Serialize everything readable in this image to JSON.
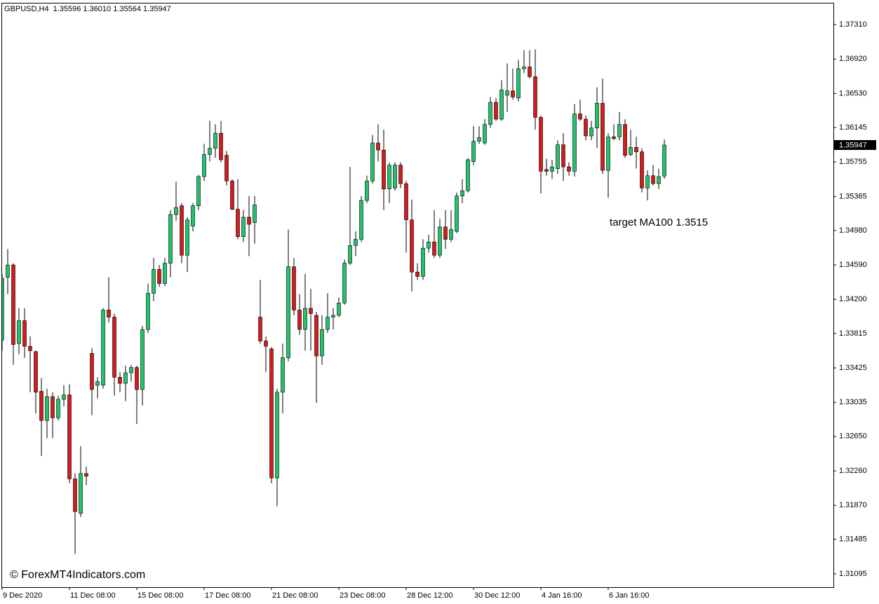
{
  "chart_data": {
    "type": "candlestick",
    "title": "GBPUSD,H4",
    "subtitle": "1.35596 1.36010 1.35564 1.35947",
    "annotation": "target MA100 1.3515",
    "watermark": "© ForexMT4Indicators.com",
    "last_price": 1.35947,
    "up_color": "#22c36c",
    "down_color": "#d41c1c",
    "wick_color": "#000000",
    "annotation_color": "#1a9a1a",
    "ylim": [
      1.30944,
      1.37556
    ],
    "yticks": [
      {
        "value": 1.3731,
        "label": "1.37310"
      },
      {
        "value": 1.3692,
        "label": "1.36920"
      },
      {
        "value": 1.3653,
        "label": "1.36530"
      },
      1.36145,
      1.35755,
      1.35365,
      {
        "value": 1.3498,
        "label": "1.34980"
      },
      {
        "value": 1.3459,
        "label": "1.34590"
      },
      {
        "value": 1.342,
        "label": "1.34200"
      },
      1.33815,
      1.33425,
      1.33035,
      {
        "value": 1.3265,
        "label": "1.32650"
      },
      {
        "value": 1.3226,
        "label": "1.32260"
      },
      {
        "value": 1.3187,
        "label": "1.31870"
      },
      1.31485,
      1.31095
    ],
    "categories": [
      "9 Dec 2020",
      null,
      null,
      null,
      null,
      null,
      null,
      null,
      null,
      null,
      null,
      null,
      "11 Dec 08:00",
      null,
      null,
      null,
      null,
      null,
      null,
      null,
      null,
      null,
      null,
      null,
      "15 Dec 08:00",
      null,
      null,
      null,
      null,
      null,
      null,
      null,
      null,
      null,
      null,
      null,
      "17 Dec 08:00",
      null,
      null,
      null,
      null,
      null,
      null,
      null,
      null,
      null,
      null,
      null,
      "21 Dec 08:00",
      null,
      null,
      null,
      null,
      null,
      null,
      null,
      null,
      null,
      null,
      null,
      "23 Dec 08:00",
      null,
      null,
      null,
      null,
      null,
      null,
      null,
      null,
      null,
      null,
      null,
      "28 Dec 12:00",
      null,
      null,
      null,
      null,
      null,
      null,
      null,
      null,
      null,
      null,
      null,
      "30 Dec 12:00",
      null,
      null,
      null,
      null,
      null,
      null,
      null,
      null,
      null,
      null,
      null,
      "4 Jan 16:00",
      null,
      null,
      null,
      null,
      null,
      null,
      null,
      null,
      null,
      null,
      null,
      "6 Jan 16:00",
      null,
      null,
      null,
      null,
      null,
      null,
      null,
      null,
      null,
      null
    ],
    "open": [
      1.3374,
      1.3445,
      1.3459,
      1.337,
      1.3396,
      1.3367,
      1.3361,
      1.3316,
      1.3283,
      1.331,
      1.3286,
      1.3307,
      1.3312,
      1.3217,
      1.3178,
      1.3223,
      1.3359,
      1.3323,
      1.3323,
      1.3408,
      1.34,
      1.3332,
      1.3325,
      1.3337,
      1.3343,
      1.3318,
      1.3386,
      1.3427,
      1.3454,
      1.3438,
      1.3461,
      1.3516,
      1.3526,
      1.347,
      1.3503,
      1.3526,
      1.3559,
      1.3584,
      1.3591,
      1.3608,
      1.3583,
      1.3554,
      1.3522,
      1.3491,
      1.3513,
      1.3507,
      1.34,
      1.3373,
      1.3364,
      1.3218,
      1.3315,
      1.3354,
      1.3457,
      1.3408,
      1.3386,
      1.341,
      1.3402,
      1.3356,
      1.3386,
      1.34,
      1.3402,
      1.3416,
      1.3461,
      1.3481,
      1.3488,
      1.3532,
      1.3554,
      1.3597,
      1.3589,
      1.3545,
      1.3546,
      1.3572,
      1.3551,
      1.351,
      1.3451,
      1.3446,
      1.3478,
      1.3485,
      1.347,
      1.3502,
      1.3488,
      1.3497,
      1.3537,
      1.3543,
      1.3576,
      1.3599,
      1.3597,
      1.3618,
      1.3643,
      1.3624,
      1.3651,
      1.3656,
      1.3648,
      1.3681,
      1.3683,
      1.3672,
      1.3626,
      1.3567,
      1.3565,
      1.3568,
      1.3595,
      1.357,
      1.3565,
      1.363,
      1.3624,
      1.3605,
      1.3614,
      1.3642,
      1.3566,
      1.3604,
      1.3604,
      1.3618,
      1.3584,
      1.3592,
      1.3587,
      1.3546,
      1.356,
      1.3551,
      1.35596
    ],
    "high": [
      1.3449,
      1.3477,
      1.3461,
      1.341,
      1.341,
      1.3378,
      1.3362,
      1.3331,
      1.3319,
      1.3315,
      1.3311,
      1.3323,
      1.3324,
      1.3223,
      1.3254,
      1.3231,
      1.3365,
      1.3332,
      1.341,
      1.3445,
      1.3404,
      1.3338,
      1.3345,
      1.3346,
      1.3345,
      1.339,
      1.3438,
      1.3467,
      1.3459,
      1.3467,
      1.3521,
      1.3553,
      1.3529,
      1.3513,
      1.3529,
      1.3561,
      1.3596,
      1.3622,
      1.3618,
      1.3622,
      1.3588,
      1.3556,
      1.3556,
      1.3521,
      1.3537,
      1.3537,
      1.3442,
      1.3378,
      1.3366,
      1.3319,
      1.337,
      1.3499,
      1.3467,
      1.3426,
      1.3449,
      1.3432,
      1.3406,
      1.3402,
      1.3427,
      1.341,
      1.3422,
      1.3465,
      1.357,
      1.3497,
      1.3537,
      1.356,
      1.3606,
      1.3618,
      1.3612,
      1.3575,
      1.3575,
      1.3575,
      1.3554,
      1.3533,
      1.3461,
      1.3488,
      1.3493,
      1.3521,
      1.3511,
      1.3521,
      1.3521,
      1.3541,
      1.3556,
      1.358,
      1.3616,
      1.3616,
      1.3624,
      1.3649,
      1.3648,
      1.3668,
      1.3687,
      1.3681,
      1.3691,
      1.3702,
      1.3702,
      1.3703,
      1.3628,
      1.3579,
      1.3578,
      1.36,
      1.3608,
      1.3575,
      1.3641,
      1.3646,
      1.3628,
      1.3622,
      1.366,
      1.367,
      1.3608,
      1.3618,
      1.3632,
      1.3624,
      1.3612,
      1.3604,
      1.3591,
      1.3566,
      1.3572,
      1.3568,
      1.3601
    ],
    "low": [
      1.3362,
      1.3426,
      1.3346,
      1.3358,
      1.3354,
      1.3315,
      1.3291,
      1.3243,
      1.3263,
      1.3263,
      1.3283,
      1.3299,
      1.3212,
      1.3132,
      1.3174,
      1.321,
      1.3289,
      1.3308,
      1.3319,
      1.3394,
      1.3311,
      1.3315,
      1.3305,
      1.3327,
      1.3279,
      1.33,
      1.3382,
      1.3418,
      1.3434,
      1.3435,
      1.3445,
      1.3509,
      1.3461,
      1.3451,
      1.3497,
      1.3521,
      1.3554,
      1.3576,
      1.358,
      1.3575,
      1.3549,
      1.3521,
      1.3488,
      1.3485,
      1.3469,
      1.3483,
      1.337,
      1.3338,
      1.3212,
      1.3186,
      1.3291,
      1.335,
      1.3402,
      1.338,
      1.3362,
      1.3362,
      1.3303,
      1.3346,
      1.3382,
      1.3386,
      1.34,
      1.3414,
      1.3459,
      1.3469,
      1.3485,
      1.3529,
      1.3551,
      1.3576,
      1.3521,
      1.3529,
      1.3543,
      1.3546,
      1.3473,
      1.3429,
      1.3442,
      1.3442,
      1.3473,
      1.3467,
      1.3467,
      1.3477,
      1.3485,
      1.3495,
      1.3529,
      1.3541,
      1.3572,
      1.3596,
      1.3595,
      1.3614,
      1.3622,
      1.3622,
      1.3632,
      1.3646,
      1.3644,
      1.3676,
      1.367,
      1.3612,
      1.354,
      1.356,
      1.3556,
      1.3562,
      1.3554,
      1.356,
      1.3559,
      1.3622,
      1.36,
      1.36,
      1.3591,
      1.3562,
      1.3535,
      1.36,
      1.36,
      1.358,
      1.3582,
      1.3568,
      1.3541,
      1.3532,
      1.3549,
      1.3545,
      1.35564
    ],
    "close": [
      1.3444,
      1.3459,
      1.3369,
      1.3396,
      1.3367,
      1.3362,
      1.3315,
      1.3283,
      1.331,
      1.3286,
      1.3307,
      1.3312,
      1.3217,
      1.318,
      1.3223,
      1.322,
      1.3318,
      1.3327,
      1.3408,
      1.34,
      1.3332,
      1.3325,
      1.3337,
      1.3343,
      1.3318,
      1.3386,
      1.3427,
      1.3454,
      1.3438,
      1.3461,
      1.3516,
      1.3524,
      1.347,
      1.351,
      1.3526,
      1.3559,
      1.3584,
      1.3591,
      1.3608,
      1.3578,
      1.3554,
      1.3522,
      1.3491,
      1.3513,
      1.3505,
      1.3527,
      1.3373,
      1.3367,
      1.3218,
      1.3315,
      1.3354,
      1.3457,
      1.3408,
      1.3386,
      1.341,
      1.3404,
      1.3356,
      1.3386,
      1.34,
      1.3402,
      1.3416,
      1.3461,
      1.3481,
      1.3488,
      1.3532,
      1.3554,
      1.3597,
      1.3589,
      1.3545,
      1.3572,
      1.3572,
      1.3551,
      1.351,
      1.3451,
      1.3446,
      1.3478,
      1.3485,
      1.347,
      1.3502,
      1.3488,
      1.3499,
      1.3537,
      1.3543,
      1.3578,
      1.3599,
      1.3603,
      1.3618,
      1.3643,
      1.3624,
      1.3657,
      1.3656,
      1.3649,
      1.3681,
      1.3683,
      1.3672,
      1.3626,
      1.3565,
      1.3565,
      1.357,
      1.3595,
      1.357,
      1.3565,
      1.363,
      1.3624,
      1.3605,
      1.3614,
      1.3642,
      1.3566,
      1.3604,
      1.3602,
      1.3618,
      1.3583,
      1.3592,
      1.3587,
      1.3546,
      1.356,
      1.3551,
      1.3559,
      1.35947
    ]
  }
}
